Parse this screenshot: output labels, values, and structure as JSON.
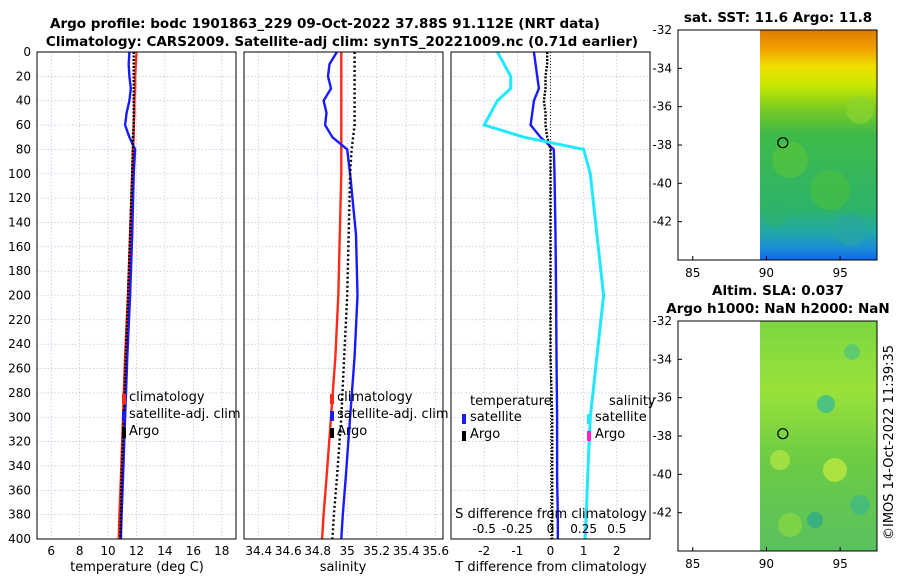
{
  "header": {
    "title_line1": "Argo profile: bodc 1901863_229 09-Oct-2022 37.88S 91.112E (NRT data)",
    "title_line2": "Climatology: CARS2009. Satellite-adj clim: synTS_20221009.nc (0.71d earlier)"
  },
  "colors": {
    "climatology": "#ff2a1a",
    "satellite": "#1a1aff",
    "argo": "#000000",
    "salinity_sat": "#22e8ff",
    "salinity_argo": "#ff22cc"
  },
  "chart_data": [
    {
      "type": "line",
      "xlabel": "temperature (deg C)",
      "ylabel": "",
      "xlim": [
        5,
        19
      ],
      "ylim": [
        400,
        0
      ],
      "xticks": [
        "6",
        "8",
        "10",
        "12",
        "14",
        "16",
        "18"
      ],
      "yticks": [
        "0",
        "20",
        "40",
        "60",
        "80",
        "100",
        "120",
        "140",
        "160",
        "180",
        "200",
        "220",
        "240",
        "260",
        "280",
        "300",
        "320",
        "340",
        "360",
        "380",
        "400"
      ],
      "grid": true,
      "legend": [
        "climatology",
        "satellite-adj. clim",
        "Argo"
      ],
      "depth": [
        0,
        10,
        20,
        30,
        40,
        50,
        60,
        70,
        80,
        100,
        150,
        200,
        250,
        300,
        350,
        380,
        400
      ],
      "series": [
        {
          "name": "climatology",
          "values": [
            12.0,
            11.95,
            11.9,
            11.9,
            11.85,
            11.85,
            11.8,
            11.8,
            11.75,
            11.7,
            11.55,
            11.4,
            11.2,
            11.05,
            10.9,
            10.8,
            10.75
          ]
        },
        {
          "name": "satellite-adj. clim",
          "values": [
            11.5,
            11.45,
            11.5,
            11.6,
            11.5,
            11.3,
            11.2,
            11.5,
            11.9,
            11.8,
            11.7,
            11.55,
            11.35,
            11.2,
            11.05,
            10.95,
            10.9
          ]
        },
        {
          "name": "Argo",
          "values": [
            11.8,
            11.8,
            11.8,
            11.8,
            11.8,
            11.8,
            11.8,
            11.75,
            11.75,
            11.7,
            11.55,
            11.4,
            11.25,
            11.1,
            10.95,
            10.9,
            10.85
          ]
        }
      ]
    },
    {
      "type": "line",
      "xlabel": "salinity",
      "ylabel": "",
      "xlim": [
        34.3,
        35.65
      ],
      "ylim": [
        400,
        0
      ],
      "xticks": [
        "34.4",
        "34.6",
        "34.8",
        "35",
        "35.2",
        "35.4",
        "35.6"
      ],
      "grid": true,
      "legend": [
        "climatology",
        "satellite-adj. clim",
        "Argo"
      ],
      "depth": [
        0,
        10,
        20,
        30,
        40,
        50,
        60,
        70,
        80,
        100,
        150,
        200,
        250,
        300,
        350,
        380,
        400
      ],
      "series": [
        {
          "name": "climatology",
          "values": [
            34.96,
            34.96,
            34.96,
            34.96,
            34.96,
            34.96,
            34.96,
            34.96,
            34.96,
            34.96,
            34.95,
            34.94,
            34.92,
            34.89,
            34.86,
            34.84,
            34.83
          ]
        },
        {
          "name": "satellite-adj. clim",
          "values": [
            34.93,
            34.88,
            34.87,
            34.89,
            34.84,
            34.86,
            34.85,
            34.9,
            35.0,
            35.02,
            35.06,
            35.07,
            35.05,
            35.02,
            34.99,
            34.97,
            34.96
          ]
        },
        {
          "name": "Argo",
          "values": [
            35.05,
            35.05,
            35.05,
            35.05,
            35.05,
            35.05,
            35.05,
            35.04,
            35.03,
            35.02,
            35.01,
            35.0,
            34.98,
            34.96,
            34.93,
            34.91,
            34.9
          ]
        }
      ]
    },
    {
      "type": "line",
      "xlabel": "T difference from climatology",
      "top_axis_label": "S difference from climatology",
      "xlim": [
        -3,
        3
      ],
      "ylim": [
        400,
        0
      ],
      "xticks": [
        "-2",
        "-1",
        "0",
        "1",
        "2"
      ],
      "top_xticks": [
        "-0.5",
        "-0.25",
        "0",
        "0.25",
        "0.5"
      ],
      "grid": true,
      "legend_temperature_title": "temperature",
      "legend_salinity_title": "salinity",
      "legend": [
        "satellite",
        "Argo",
        "satellite",
        "Argo"
      ],
      "depth": [
        0,
        10,
        20,
        30,
        40,
        50,
        60,
        70,
        80,
        100,
        150,
        200,
        250,
        300,
        350,
        380,
        400
      ],
      "series": [
        {
          "name": "temperature satellite",
          "values": [
            -0.5,
            -0.45,
            -0.4,
            -0.35,
            -0.5,
            -0.55,
            -0.6,
            -0.3,
            0.1,
            0.12,
            0.15,
            0.17,
            0.18,
            0.2,
            0.2,
            0.22,
            0.22
          ]
        },
        {
          "name": "temperature Argo",
          "values": [
            -0.1,
            -0.1,
            -0.15,
            -0.15,
            -0.2,
            -0.15,
            -0.15,
            -0.1,
            0.0,
            0.0,
            0.0,
            0.0,
            0.0,
            0.05,
            0.05,
            0.05,
            0.05
          ]
        },
        {
          "name": "salinity satellite",
          "values": [
            -0.4,
            -0.35,
            -0.3,
            -0.3,
            -0.4,
            -0.45,
            -0.5,
            -0.2,
            0.25,
            0.3,
            0.35,
            0.4,
            0.35,
            0.3,
            0.28,
            0.27,
            0.26
          ]
        },
        {
          "name": "salinity Argo",
          "values": []
        }
      ]
    },
    {
      "type": "heatmap",
      "title": "sat. SST: 11.6 Argo: 11.8",
      "xlim": [
        84,
        97.5
      ],
      "ylim": [
        -44,
        -32
      ],
      "xticks": [
        "85",
        "90",
        "95"
      ],
      "yticks": [
        "-32",
        "-34",
        "-36",
        "-38",
        "-40",
        "-42"
      ],
      "marker_lon": 91.112,
      "marker_lat": -37.88
    },
    {
      "type": "heatmap",
      "title_line1": "Altim. SLA: 0.037",
      "title_line2": "Argo h1000: NaN h2000: NaN",
      "xlim": [
        84,
        97.5
      ],
      "ylim": [
        -44,
        -32
      ],
      "xticks": [
        "85",
        "90",
        "95"
      ],
      "yticks": [
        "-32",
        "-34",
        "-36",
        "-38",
        "-40",
        "-42"
      ],
      "marker_lon": 91.112,
      "marker_lat": -37.88
    }
  ],
  "footer": {
    "stamp": "©IMOS 14-Oct-2022 11:39:35"
  }
}
